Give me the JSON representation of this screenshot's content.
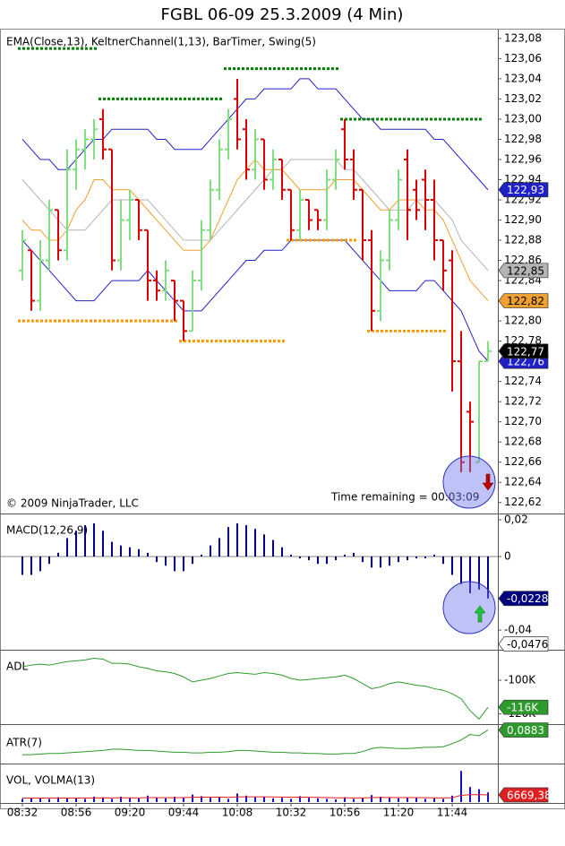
{
  "chart_data": [
    {
      "type": "ohlc",
      "title": "FGBL 06-09  25.3.2009 (4 Min)",
      "label": "EMA(Close,13),  KeltnerChannel(1,13),  BarTimer,  Swing(5)",
      "copyright": "© 2009 NinjaTrader, LLC",
      "annotation": "Time remaining = 00:03:09",
      "up_color": "#80dd80",
      "down_color": "#dd0000",
      "open": [
        122.85,
        122.87,
        122.82,
        122.86,
        122.91,
        122.87,
        122.95,
        122.97,
        122.98,
        123.0,
        122.97,
        122.86,
        122.9,
        122.92,
        122.89,
        122.84,
        122.83,
        122.84,
        122.82,
        122.79,
        122.84,
        122.89,
        122.93,
        122.97,
        123.02,
        122.99,
        122.95,
        122.98,
        122.94,
        122.96,
        122.93,
        122.89,
        122.92,
        122.91,
        122.9,
        122.94,
        122.99,
        122.96,
        122.93,
        122.88,
        122.81,
        122.86,
        122.9,
        122.96,
        122.93,
        122.94,
        122.92,
        122.88,
        122.86,
        122.76,
        122.71,
        122.66,
        122.76
      ],
      "high": [
        122.89,
        122.87,
        122.88,
        122.92,
        122.91,
        122.97,
        122.98,
        122.99,
        123.0,
        123.01,
        122.97,
        122.92,
        122.93,
        122.92,
        122.89,
        122.85,
        122.86,
        122.84,
        122.82,
        122.85,
        122.9,
        122.94,
        122.98,
        123.01,
        123.04,
        123.0,
        122.99,
        122.98,
        122.97,
        122.96,
        122.93,
        122.93,
        122.92,
        122.91,
        122.95,
        122.97,
        123.0,
        122.97,
        122.93,
        122.89,
        122.87,
        122.91,
        122.95,
        122.97,
        122.94,
        122.95,
        122.94,
        122.88,
        122.87,
        122.79,
        122.72,
        122.76,
        122.78
      ],
      "low": [
        122.84,
        122.81,
        122.81,
        122.85,
        122.86,
        122.86,
        122.93,
        122.95,
        122.96,
        122.96,
        122.85,
        122.85,
        122.88,
        122.88,
        122.82,
        122.82,
        122.82,
        122.8,
        122.78,
        122.79,
        122.83,
        122.88,
        122.92,
        122.96,
        122.97,
        122.94,
        122.94,
        122.93,
        122.93,
        122.92,
        122.88,
        122.88,
        122.89,
        122.89,
        122.89,
        122.93,
        122.95,
        122.92,
        122.86,
        122.79,
        122.8,
        122.85,
        122.89,
        122.88,
        122.9,
        122.89,
        122.86,
        122.83,
        122.73,
        122.65,
        122.65,
        122.66,
        122.76
      ],
      "close": [
        122.88,
        122.82,
        122.86,
        122.91,
        122.87,
        122.95,
        122.97,
        122.98,
        122.99,
        122.97,
        122.86,
        122.9,
        122.92,
        122.89,
        122.84,
        122.83,
        122.85,
        122.82,
        122.79,
        122.84,
        122.89,
        122.93,
        122.97,
        123.0,
        122.98,
        122.95,
        122.98,
        122.94,
        122.96,
        122.93,
        122.89,
        122.92,
        122.9,
        122.9,
        122.94,
        122.96,
        122.96,
        122.93,
        122.88,
        122.81,
        122.86,
        122.9,
        122.94,
        122.91,
        122.91,
        122.92,
        122.88,
        122.85,
        122.76,
        122.66,
        122.7,
        122.76,
        122.77
      ],
      "close_label": "122,77",
      "series": [
        {
          "color": "#b4b4b4",
          "values": [
            122.94,
            122.93,
            122.92,
            122.91,
            122.9,
            122.89,
            122.89,
            122.89,
            122.9,
            122.91,
            122.92,
            122.92,
            122.92,
            122.92,
            122.92,
            122.91,
            122.9,
            122.89,
            122.88,
            122.88,
            122.88,
            122.88,
            122.89,
            122.9,
            122.91,
            122.92,
            122.93,
            122.94,
            122.95,
            122.95,
            122.96,
            122.96,
            122.96,
            122.96,
            122.96,
            122.96,
            122.95,
            122.95,
            122.94,
            122.93,
            122.92,
            122.91,
            122.91,
            122.91,
            122.92,
            122.92,
            122.92,
            122.91,
            122.9,
            122.88,
            122.87,
            122.86,
            122.85
          ],
          "value_label": "122,85"
        },
        {
          "color": "#f0a030",
          "values": [
            122.9,
            122.89,
            122.89,
            122.88,
            122.88,
            122.89,
            122.91,
            122.92,
            122.94,
            122.94,
            122.93,
            122.93,
            122.93,
            122.92,
            122.91,
            122.9,
            122.89,
            122.88,
            122.87,
            122.87,
            122.87,
            122.88,
            122.9,
            122.92,
            122.94,
            122.95,
            122.96,
            122.95,
            122.95,
            122.95,
            122.94,
            122.93,
            122.93,
            122.93,
            122.93,
            122.94,
            122.94,
            122.94,
            122.93,
            122.92,
            122.91,
            122.91,
            122.92,
            122.92,
            122.92,
            122.91,
            122.91,
            122.9,
            122.88,
            122.86,
            122.84,
            122.83,
            122.82
          ],
          "value_label": "122,82"
        },
        {
          "color": "#2020c8",
          "values": [
            122.88,
            122.87,
            122.86,
            122.85,
            122.84,
            122.83,
            122.82,
            122.82,
            122.82,
            122.83,
            122.84,
            122.84,
            122.84,
            122.84,
            122.85,
            122.84,
            122.83,
            122.82,
            122.81,
            122.81,
            122.81,
            122.82,
            122.83,
            122.84,
            122.85,
            122.86,
            122.86,
            122.87,
            122.87,
            122.87,
            122.88,
            122.88,
            122.88,
            122.88,
            122.88,
            122.88,
            122.88,
            122.87,
            122.86,
            122.85,
            122.84,
            122.83,
            122.83,
            122.83,
            122.83,
            122.84,
            122.84,
            122.83,
            122.82,
            122.81,
            122.79,
            122.77,
            122.76
          ],
          "value_label": "122,76"
        },
        {
          "color": "#2020c8",
          "values": [
            122.98,
            122.97,
            122.96,
            122.96,
            122.95,
            122.95,
            122.96,
            122.97,
            122.98,
            122.98,
            122.99,
            122.99,
            122.99,
            122.99,
            122.99,
            122.98,
            122.98,
            122.97,
            122.97,
            122.97,
            122.97,
            122.98,
            122.99,
            123.0,
            123.01,
            123.02,
            123.02,
            123.03,
            123.03,
            123.03,
            123.03,
            123.04,
            123.04,
            123.03,
            123.03,
            123.03,
            123.02,
            123.01,
            123.0,
            123.0,
            122.99,
            122.99,
            122.99,
            122.99,
            122.99,
            122.99,
            122.98,
            122.98,
            122.97,
            122.96,
            122.95,
            122.94,
            122.93
          ],
          "value_label": "122,93"
        },
        {
          "color": "#008000",
          "style": "dotted",
          "values": [
            123.07,
            123.07,
            123.07,
            123.07,
            123.07,
            123.07,
            123.07,
            123.07,
            123.07,
            123.02,
            123.02,
            123.02,
            123.02,
            123.02,
            123.02,
            123.02,
            123.02,
            123.02,
            123.02,
            123.02,
            123.02,
            123.02,
            123.02,
            123.05,
            123.05,
            123.05,
            123.05,
            123.05,
            123.05,
            123.05,
            123.05,
            123.05,
            123.05,
            123.05,
            123.05,
            123.05,
            123.0,
            123.0,
            123.0,
            123.0,
            123.0,
            123.0,
            123.0,
            123.0,
            123.0,
            123.0,
            123.0,
            123.0,
            123.0,
            123.0,
            123.0,
            123.0,
            null
          ]
        },
        {
          "color": "#ff9900",
          "style": "dotted",
          "values": [
            122.8,
            122.8,
            122.8,
            122.8,
            122.8,
            122.8,
            122.8,
            122.8,
            122.8,
            122.8,
            122.8,
            122.8,
            122.8,
            122.8,
            122.8,
            122.8,
            122.8,
            122.8,
            122.78,
            122.78,
            122.78,
            122.78,
            122.78,
            122.78,
            122.78,
            122.78,
            122.78,
            122.78,
            122.78,
            122.78,
            122.88,
            122.88,
            122.88,
            122.88,
            122.88,
            122.88,
            122.88,
            122.88,
            null,
            122.79,
            122.79,
            122.79,
            122.79,
            122.79,
            122.79,
            122.79,
            122.79,
            122.79,
            null,
            null,
            null,
            null,
            null
          ]
        }
      ],
      "ylim": [
        122.61,
        123.087
      ],
      "yticks": [
        {
          "value": 123.08,
          "label": "123,08"
        },
        {
          "value": 123.06,
          "label": "123,06"
        },
        {
          "value": 123.04,
          "label": "123,04"
        },
        {
          "value": 123.02,
          "label": "123,02"
        },
        {
          "value": 123.0,
          "label": "123,00"
        },
        {
          "value": 122.98,
          "label": "122,98"
        },
        {
          "value": 122.96,
          "label": "122,96"
        },
        {
          "value": 122.94,
          "label": "122,94"
        },
        {
          "value": 122.92,
          "label": "122,92"
        },
        {
          "value": 122.9,
          "label": "122,90"
        },
        {
          "value": 122.88,
          "label": "122,88"
        },
        {
          "value": 122.86,
          "label": "122,86"
        },
        {
          "value": 122.84,
          "label": "122,84"
        },
        {
          "value": 122.82,
          "label": "122,82"
        },
        {
          "value": 122.8,
          "label": "122,80"
        },
        {
          "value": 122.78,
          "label": "122,78"
        },
        {
          "value": 122.76,
          "label": "122,76"
        },
        {
          "value": 122.74,
          "label": "122,74"
        },
        {
          "value": 122.72,
          "label": "122,72"
        },
        {
          "value": 122.7,
          "label": "122,70"
        },
        {
          "value": 122.68,
          "label": "122,68"
        },
        {
          "value": 122.66,
          "label": "122,66"
        },
        {
          "value": 122.64,
          "label": "122,64"
        },
        {
          "value": 122.62,
          "label": "122,62"
        }
      ]
    },
    {
      "type": "bar",
      "label": "MACD(12,26,9)",
      "color": "#000080",
      "values": [
        -0.01,
        -0.01,
        -0.008,
        -0.004,
        0.002,
        0.01,
        0.014,
        0.017,
        0.018,
        0.014,
        0.008,
        0.006,
        0.005,
        0.004,
        0.002,
        -0.003,
        -0.005,
        -0.008,
        -0.008,
        -0.004,
        0.001,
        0.006,
        0.01,
        0.016,
        0.018,
        0.017,
        0.015,
        0.012,
        0.009,
        0.005,
        0.001,
        -0.001,
        -0.002,
        -0.004,
        -0.004,
        -0.002,
        0.001,
        0.002,
        -0.003,
        -0.006,
        -0.006,
        -0.005,
        -0.003,
        -0.002,
        -0.001,
        -0.001,
        0.001,
        -0.004,
        -0.01,
        -0.015,
        -0.02,
        -0.018,
        -0.0228
      ],
      "value_label": "-0,0228",
      "markers": [
        {
          "value": -0.0476,
          "label": "-0,0476",
          "color": "#ffffff"
        }
      ],
      "zero_line": true,
      "ylim": [
        -0.0507,
        0.0224
      ],
      "yticks": [
        {
          "value": 0.02,
          "label": "0,02"
        },
        0,
        {
          "value": -0.04,
          "label": "-0,04"
        }
      ]
    },
    {
      "type": "line",
      "label": "ADL",
      "color": "#2e9a2e",
      "values": [
        -92000,
        -91000,
        -90500,
        -91000,
        -90000,
        -89000,
        -88500,
        -88000,
        -87000,
        -87500,
        -90000,
        -90000,
        -90500,
        -92000,
        -93000,
        -94500,
        -95000,
        -96000,
        -98000,
        -101000,
        -100000,
        -99000,
        -97500,
        -96000,
        -95500,
        -96000,
        -96500,
        -95500,
        -96000,
        -97000,
        -99000,
        -100000,
        -99500,
        -99000,
        -98500,
        -98000,
        -97000,
        -99000,
        -102000,
        -105000,
        -104000,
        -102000,
        -101000,
        -102000,
        -103000,
        -103500,
        -105000,
        -106000,
        -108000,
        -111000,
        -118000,
        -123000,
        -116000
      ],
      "value_label": "-116K",
      "ylim": [
        -126000,
        -83000
      ],
      "yticks": [
        {
          "value": -100000,
          "label": "-100K"
        },
        {
          "value": -120000,
          "label": "-120K"
        }
      ]
    },
    {
      "type": "line",
      "label": "ATR(7)",
      "color": "#2e9a2e",
      "values": [
        0.048,
        0.048,
        0.049,
        0.05,
        0.05,
        0.051,
        0.052,
        0.053,
        0.054,
        0.055,
        0.057,
        0.057,
        0.056,
        0.055,
        0.055,
        0.054,
        0.053,
        0.052,
        0.052,
        0.051,
        0.051,
        0.052,
        0.052,
        0.053,
        0.055,
        0.055,
        0.054,
        0.053,
        0.052,
        0.052,
        0.051,
        0.051,
        0.05,
        0.05,
        0.049,
        0.049,
        0.05,
        0.05,
        0.053,
        0.058,
        0.06,
        0.059,
        0.058,
        0.058,
        0.059,
        0.06,
        0.06,
        0.061,
        0.066,
        0.072,
        0.081,
        0.079,
        0.0883
      ],
      "value_label": "0,0883",
      "ylim": [
        0.035,
        0.095
      ]
    },
    {
      "type": "volume",
      "label": "VOL, VOLMA(13)",
      "color": "#1010c8",
      "values": [
        3000,
        4000,
        3500,
        3000,
        4500,
        3500,
        4000,
        3000,
        5000,
        4500,
        3000,
        5000,
        4000,
        3500,
        6000,
        4000,
        3500,
        5000,
        4000,
        7000,
        5500,
        4000,
        4500,
        3000,
        8000,
        6000,
        4500,
        5000,
        3500,
        4000,
        3000,
        5500,
        4000,
        3500,
        3000,
        2500,
        4500,
        3000,
        4000,
        6500,
        5000,
        4000,
        3500,
        4500,
        4000,
        3000,
        3500,
        3000,
        6000,
        29000,
        14000,
        12000,
        9000
      ],
      "series": [
        {
          "color": "#e02020",
          "values": [
            3800,
            3800,
            3800,
            3700,
            3800,
            3800,
            3800,
            3700,
            3900,
            4000,
            3900,
            4000,
            4000,
            3900,
            4200,
            4200,
            4100,
            4200,
            4200,
            4500,
            4600,
            4600,
            4600,
            4400,
            4800,
            4900,
            4900,
            4900,
            4800,
            4700,
            4500,
            4600,
            4500,
            4400,
            4200,
            4000,
            4000,
            3900,
            3900,
            4200,
            4300,
            4300,
            4200,
            4200,
            4200,
            4100,
            4000,
            3900,
            4100,
            6300,
            6900,
            7000,
            6669.38
          ],
          "value_label": "6669,38"
        }
      ],
      "categories": [
        "08:32",
        null,
        null,
        null,
        null,
        null,
        "08:56",
        null,
        null,
        null,
        null,
        null,
        "09:20",
        null,
        null,
        null,
        null,
        null,
        "09:44",
        null,
        null,
        null,
        null,
        null,
        "10:08",
        null,
        null,
        null,
        null,
        null,
        "10:32",
        null,
        null,
        null,
        null,
        null,
        "10:56",
        null,
        null,
        null,
        null,
        null,
        "11:20",
        null,
        null,
        null,
        null,
        null,
        "11:44",
        null,
        null,
        null,
        null
      ],
      "ylim": [
        0,
        35000
      ]
    }
  ]
}
